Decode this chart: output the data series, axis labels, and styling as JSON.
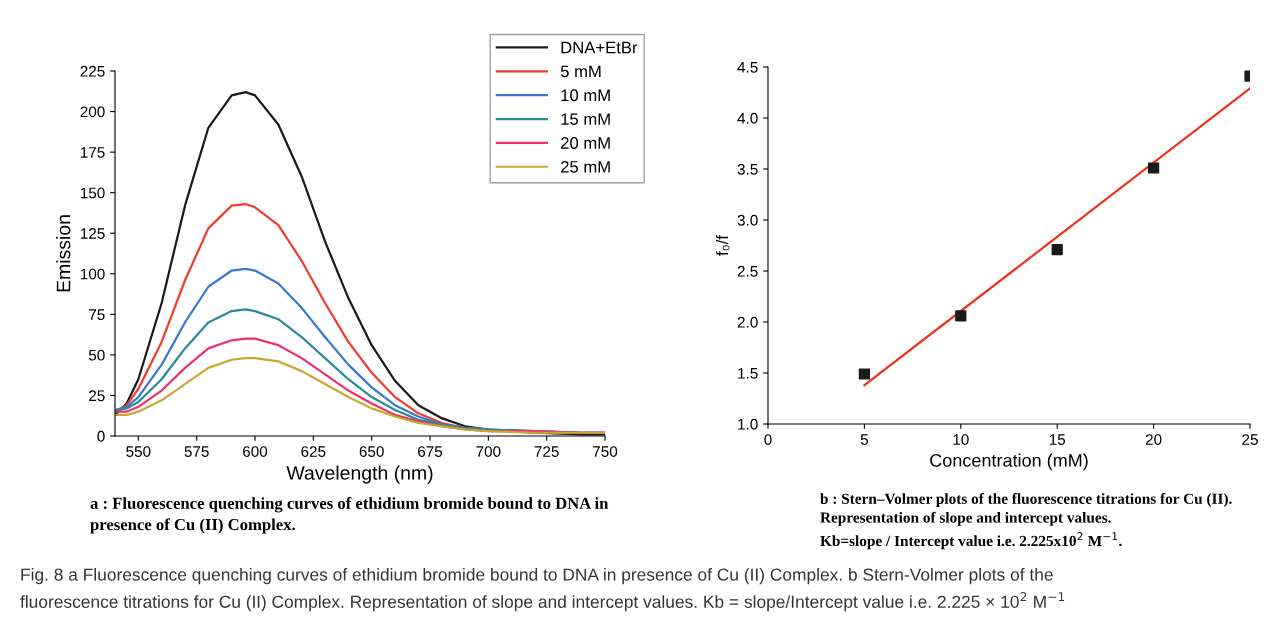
{
  "chart_data": [
    {
      "type": "line",
      "xlabel": "Wavelength (nm)",
      "ylabel": "Emission",
      "xlim": [
        540,
        750
      ],
      "ylim": [
        0,
        225
      ],
      "xticks": [
        550,
        575,
        600,
        625,
        650,
        675,
        700,
        725,
        750
      ],
      "yticks": [
        0,
        25,
        50,
        75,
        100,
        125,
        150,
        175,
        200,
        225
      ],
      "x": [
        540,
        545,
        550,
        560,
        570,
        580,
        590,
        596,
        600,
        610,
        620,
        630,
        640,
        650,
        660,
        670,
        680,
        690,
        700,
        720,
        740,
        750
      ],
      "legend": "top right",
      "grid": false,
      "marker": "none",
      "line_style": "solid",
      "series": [
        {
          "name": "DNA+EtBr",
          "color": "#1a1a1a",
          "values": [
            13,
            20,
            35,
            82,
            142,
            190,
            210,
            212,
            210,
            192,
            160,
            120,
            85,
            56,
            34,
            19,
            11,
            6,
            4,
            2,
            1,
            1
          ]
        },
        {
          "name": "5 mM",
          "color": "#f03c2e",
          "values": [
            15,
            19,
            29,
            58,
            96,
            128,
            142,
            143,
            141,
            130,
            108,
            82,
            58,
            39,
            24,
            14,
            8,
            5,
            4,
            2,
            2,
            2
          ]
        },
        {
          "name": "10 mM",
          "color": "#3a78d0",
          "values": [
            16,
            18,
            24,
            44,
            70,
            92,
            102,
            103,
            102,
            94,
            79,
            61,
            44,
            30,
            19,
            12,
            7,
            5,
            4,
            3,
            2,
            2
          ]
        },
        {
          "name": "15 mM",
          "color": "#2a8a96",
          "values": [
            16,
            17,
            21,
            35,
            54,
            70,
            77,
            78,
            77,
            72,
            61,
            48,
            35,
            24,
            16,
            10,
            7,
            5,
            4,
            3,
            2,
            2
          ]
        },
        {
          "name": "20 mM",
          "color": "#f0306e",
          "values": [
            15,
            15,
            18,
            28,
            42,
            54,
            59,
            60,
            60,
            56,
            48,
            38,
            28,
            20,
            13,
            9,
            6,
            4,
            3,
            3,
            2,
            2
          ]
        },
        {
          "name": "25 mM",
          "color": "#c8a830",
          "values": [
            13,
            13,
            15,
            22,
            32,
            42,
            47,
            48,
            48,
            46,
            40,
            32,
            24,
            17,
            12,
            8,
            6,
            4,
            3,
            2,
            2,
            2
          ]
        }
      ],
      "annotations": [
        "a : Fluorescence quenching curves of ethidium bromide bound to DNA in\npresence of Cu (II) Complex.",
        "Fig. 8 a Fluorescence quenching curves of ethidium bromide bound to DNA in presence of Cu (II) Complex. b Stern-Volmer plots of the\nfluorescence titrations for Cu (II) Complex. Representation of slope and intercept values. Kb = slope/Intercept value i.e. 2.225 × 10$^{2}$ M$^{−1}$"
      ]
    },
    {
      "type": "scatter",
      "xlabel": "Concentration (mM)",
      "ylabel": "f₀/f",
      "xlim": [
        0,
        25
      ],
      "ylim": [
        1.0,
        4.5
      ],
      "xticks": [
        0,
        5,
        10,
        15,
        20,
        25
      ],
      "yticks": [
        {
          "value": 1.0,
          "label": "1.0"
        },
        {
          "value": 1.5,
          "label": "1.5"
        },
        {
          "value": 2.0,
          "label": "2.0"
        },
        {
          "value": 2.5,
          "label": "2.5"
        },
        {
          "value": 3.0,
          "label": "3.0"
        },
        {
          "value": 3.5,
          "label": "3.5"
        },
        {
          "value": 4.0,
          "label": "4.0"
        },
        {
          "value": 4.5,
          "label": "4.5"
        }
      ],
      "grid": false,
      "series": [
        {
          "type": "scatter",
          "marker": "square",
          "color": "#1a1a1a",
          "x": [
            5,
            10,
            15,
            20,
            25
          ],
          "values": [
            1.49,
            2.06,
            2.71,
            3.51,
            4.41
          ]
        },
        {
          "type": "line",
          "marker": "none",
          "color": "#f03020",
          "x": [
            5,
            25
          ],
          "values": [
            1.38,
            4.29
          ]
        }
      ],
      "annotations": [
        "b : Stern–Volmer plots of the fluorescence titrations for Cu (II).\nRepresentation of slope and intercept values.\nKb=slope / Intercept value i.e. 2.225x10$^{2}$ M$^{−1}$."
      ]
    }
  ]
}
